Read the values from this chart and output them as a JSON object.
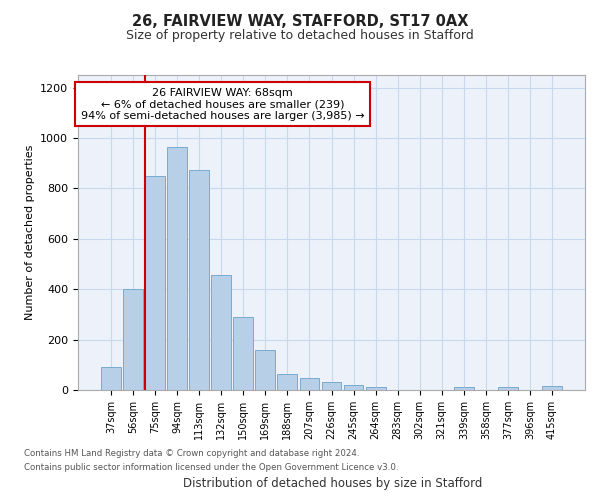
{
  "title1": "26, FAIRVIEW WAY, STAFFORD, ST17 0AX",
  "title2": "Size of property relative to detached houses in Stafford",
  "xlabel": "Distribution of detached houses by size in Stafford",
  "ylabel": "Number of detached properties",
  "categories": [
    "37sqm",
    "56sqm",
    "75sqm",
    "94sqm",
    "113sqm",
    "132sqm",
    "150sqm",
    "169sqm",
    "188sqm",
    "207sqm",
    "226sqm",
    "245sqm",
    "264sqm",
    "283sqm",
    "302sqm",
    "321sqm",
    "339sqm",
    "358sqm",
    "377sqm",
    "396sqm",
    "415sqm"
  ],
  "values": [
    90,
    400,
    850,
    965,
    875,
    455,
    290,
    160,
    65,
    48,
    30,
    20,
    10,
    0,
    0,
    0,
    10,
    0,
    10,
    0,
    15
  ],
  "bar_color": "#b8cfe8",
  "bar_edge_color": "#7aaad0",
  "vline_color": "#cc0000",
  "annotation_box_edge": "#cc0000",
  "annotation_text_line1": "26 FAIRVIEW WAY: 68sqm",
  "annotation_text_line2": "← 6% of detached houses are smaller (239)",
  "annotation_text_line3": "94% of semi-detached houses are larger (3,985) →",
  "grid_color": "#c8d8ee",
  "background_color": "#edf2fa",
  "ylim": [
    0,
    1250
  ],
  "yticks": [
    0,
    200,
    400,
    600,
    800,
    1000,
    1200
  ],
  "footer1": "Contains HM Land Registry data © Crown copyright and database right 2024.",
  "footer2": "Contains public sector information licensed under the Open Government Licence v3.0."
}
